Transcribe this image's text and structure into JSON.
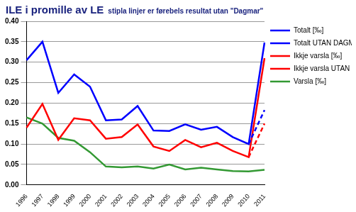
{
  "chart_data": {
    "type": "line",
    "title": "ILE i promille av LE",
    "subtitle": "stipla linjer er førebels resultat utan \"Dagmar\"",
    "categories": [
      "1996",
      "1997",
      "1998",
      "1999",
      "2000",
      "2001",
      "2002",
      "2003",
      "2004",
      "2005",
      "2006",
      "2007",
      "2008",
      "2009",
      "2010",
      "2011"
    ],
    "series": [
      {
        "name": "Totalt [‰]",
        "color": "#0000ff",
        "line_style": "solid",
        "values": [
          0.305,
          0.35,
          0.225,
          0.27,
          0.24,
          0.158,
          0.16,
          0.193,
          0.133,
          0.132,
          0.148,
          0.135,
          0.142,
          0.117,
          0.1,
          0.348
        ]
      },
      {
        "name": "Totalt UTAN DAGMAR [‰]",
        "color": "#0000ff",
        "line_style": "dashed",
        "values": [
          null,
          null,
          null,
          null,
          null,
          null,
          null,
          null,
          null,
          null,
          null,
          null,
          null,
          null,
          0.1,
          0.183
        ]
      },
      {
        "name": "Ikkje varsla [‰]",
        "color": "#ff0000",
        "line_style": "solid",
        "values": [
          0.14,
          0.198,
          0.11,
          0.163,
          0.158,
          0.113,
          0.117,
          0.148,
          0.094,
          0.083,
          0.11,
          0.092,
          0.103,
          0.083,
          0.068,
          0.31
        ]
      },
      {
        "name": "Ikkje varsla UTAN DAGMAR [‰]",
        "color": "#ff0000",
        "line_style": "dashed",
        "values": [
          null,
          null,
          null,
          null,
          null,
          null,
          null,
          null,
          null,
          null,
          null,
          null,
          null,
          null,
          0.068,
          0.15
        ]
      },
      {
        "name": "Varsla [‰]",
        "color": "#339933",
        "line_style": "solid",
        "values": [
          0.165,
          0.15,
          0.115,
          0.108,
          0.08,
          0.045,
          0.043,
          0.045,
          0.04,
          0.05,
          0.038,
          0.042,
          0.038,
          0.034,
          0.033,
          0.037
        ]
      }
    ],
    "ylim": [
      0,
      0.4
    ],
    "yticks": [
      {
        "value": 0,
        "label": "0.00"
      },
      {
        "value": 0.05,
        "label": "0.05"
      },
      {
        "value": 0.1,
        "label": "0.10"
      },
      {
        "value": 0.15,
        "label": "0.15"
      },
      {
        "value": 0.2,
        "label": "0.20"
      },
      {
        "value": 0.25,
        "label": "0.25"
      },
      {
        "value": 0.3,
        "label": "0.30"
      },
      {
        "value": 0.35,
        "label": "0.35"
      },
      {
        "value": 0.4,
        "label": "0.40"
      }
    ],
    "grid": true,
    "legend": "right"
  }
}
